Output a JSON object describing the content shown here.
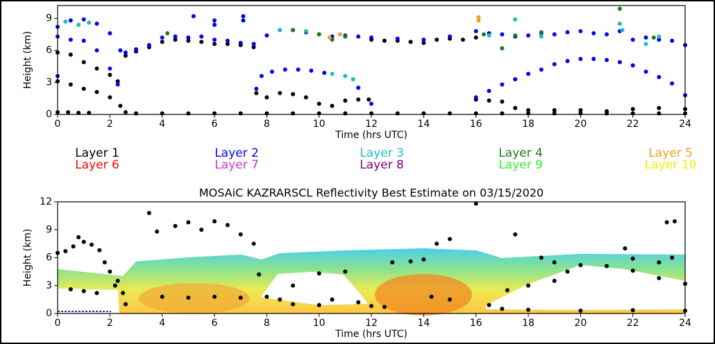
{
  "chart_data": [
    {
      "type": "scatter",
      "xlabel": "Time (hrs UTC)",
      "ylabel": "Height (km)",
      "xlim": [
        0,
        24
      ],
      "ylim": [
        0,
        10.2
      ],
      "xticks": [
        0,
        2,
        4,
        6,
        8,
        10,
        12,
        14,
        16,
        18,
        20,
        22,
        24
      ],
      "yticks": [
        0,
        3,
        6,
        9
      ],
      "series": [
        {
          "name": "Layer 1",
          "color": "#000000",
          "x": [
            0,
            0.4,
            0.8,
            1.2,
            0,
            0.5,
            1,
            1.5,
            2,
            2.4,
            2.6,
            0,
            0.5,
            1,
            1.5,
            2,
            2.3,
            3,
            4,
            5,
            6,
            7,
            8,
            9,
            10,
            11,
            12,
            13,
            14,
            15,
            16,
            17,
            18,
            19,
            20,
            21,
            22,
            23,
            24,
            2.6,
            3,
            3.5,
            4,
            4.5,
            5,
            5.5,
            6,
            6.5,
            7,
            7.5,
            7.6,
            8,
            8.5,
            9,
            9.5,
            10,
            10.5,
            11,
            11.5,
            11.9,
            12,
            12.5,
            13,
            13.5,
            14,
            14.5,
            15,
            15.5,
            16,
            16,
            16.5,
            17,
            17.5,
            18,
            19,
            20,
            21,
            22,
            23,
            24
          ],
          "values": [
            0.2,
            0.2,
            0.15,
            0.15,
            3.1,
            2.8,
            2.4,
            2.1,
            1.6,
            0.8,
            0.2,
            5.8,
            5.6,
            4.9,
            4.3,
            3.7,
            3.1,
            0.1,
            0.1,
            0.1,
            0.1,
            0.1,
            0.1,
            0.1,
            0.1,
            0.1,
            0.1,
            0.1,
            0.1,
            0.1,
            0.1,
            0.1,
            0.1,
            0.1,
            0.1,
            0.1,
            0.1,
            0.1,
            0.1,
            5.5,
            5.9,
            6.3,
            6.8,
            7,
            6.9,
            6.8,
            6.6,
            6.6,
            6.5,
            6.3,
            2,
            1.6,
            2,
            1.9,
            1.6,
            1,
            0.8,
            1.3,
            1.4,
            1.4,
            7,
            6.9,
            6.9,
            6.8,
            6.7,
            7,
            7.1,
            7,
            7.2,
            1.4,
            1.3,
            1.2,
            0.6,
            0.4,
            0.4,
            0.4,
            0.3,
            0.5,
            0.6,
            0.5
          ]
        },
        {
          "name": "Layer 2",
          "color": "#0000ee",
          "x": [
            0,
            0.5,
            1,
            1.5,
            2,
            2.4,
            2.6,
            0,
            0.5,
            1,
            1.5,
            2,
            2.3,
            0,
            3,
            3.5,
            4,
            4.5,
            5,
            5.5,
            6,
            6.5,
            7,
            7.5,
            8,
            8.5,
            9,
            9.5,
            10,
            10.5,
            11,
            11.5,
            12,
            13,
            14,
            15,
            16,
            16.5,
            17,
            17.5,
            18,
            18.5,
            19,
            19.5,
            20,
            20.5,
            21,
            21.5,
            22,
            22.5,
            23,
            23.5,
            24,
            7.6,
            7.8,
            8.2,
            8.7,
            9.2,
            9.7,
            10.2,
            11.5,
            12,
            16,
            16.5,
            17,
            17.5,
            18,
            18.5,
            19,
            19.5,
            20,
            20.5,
            21,
            21.5,
            22,
            22.5,
            23,
            23.5,
            24,
            5.2,
            6,
            6,
            7.1,
            7.1
          ],
          "values": [
            8.2,
            8.8,
            8.9,
            8.5,
            7.6,
            6,
            5.8,
            7.3,
            7,
            6.9,
            6,
            4.3,
            2.8,
            3.6,
            6.1,
            6.5,
            7.2,
            7.3,
            7.2,
            7.3,
            7,
            6.9,
            6.7,
            6.6,
            7.4,
            7.9,
            7.9,
            7.7,
            7.5,
            7.3,
            7.4,
            7.3,
            7.2,
            7.1,
            7,
            7.3,
            7.8,
            7.6,
            7.5,
            7.3,
            7.4,
            7.6,
            7.5,
            7.7,
            7.8,
            7.6,
            7.5,
            7.8,
            7,
            7.2,
            7,
            6.9,
            6.5,
            2.4,
            3.6,
            4,
            4.2,
            4.2,
            4.1,
            3.9,
            2.5,
            1,
            1.6,
            2.2,
            2.8,
            3.3,
            3.8,
            4.2,
            4.7,
            5,
            5.2,
            5.2,
            5.1,
            4.9,
            4.6,
            4,
            3.5,
            2.9,
            1.8,
            9.2,
            8.8,
            8.4,
            9.2,
            8.8
          ]
        },
        {
          "name": "Layer 3",
          "color": "#1bbcc0",
          "x": [
            0.3,
            0.8,
            1.2,
            8.5,
            9.5,
            10.5,
            11,
            11.3,
            16.5,
            17.5,
            18.5,
            21.5,
            21.6,
            22.5,
            23
          ],
          "values": [
            8.7,
            8.4,
            8.6,
            7.9,
            7.8,
            3.8,
            3.6,
            3.3,
            7.4,
            8.9,
            7.3,
            8.5,
            7.9,
            6.6,
            7.3
          ]
        },
        {
          "name": "Layer 4",
          "color": "#1a7a1a",
          "x": [
            4.2,
            9,
            10,
            10.5,
            11,
            16.3,
            17,
            17.5,
            18.5,
            21.5,
            22.8
          ],
          "values": [
            7.6,
            7.9,
            7.5,
            7,
            7.3,
            7.5,
            6.2,
            7.4,
            7.7,
            9.9,
            7.2
          ]
        },
        {
          "name": "Layer 5",
          "color": "#f0a020",
          "x": [
            16.1,
            16.1,
            10.4,
            10.8
          ],
          "values": [
            9.1,
            8.8,
            7.2,
            7.5
          ]
        },
        {
          "name": "Layer 6",
          "color": "#ff0000",
          "x": [],
          "values": []
        },
        {
          "name": "Layer 7",
          "color": "#cc33cc",
          "x": [],
          "values": []
        },
        {
          "name": "Layer 8",
          "color": "#800080",
          "x": [],
          "values": []
        },
        {
          "name": "Layer 9",
          "color": "#33ee33",
          "x": [],
          "values": []
        },
        {
          "name": "Layer 10",
          "color": "#eeee00",
          "x": [],
          "values": []
        }
      ]
    },
    {
      "type": "scatter",
      "title": "MOSAiC KAZRARSCL Reflectivity Best Estimate on 03/15/2020",
      "xlabel": "Time (hrs UTC)",
      "ylabel": "Height (km)",
      "xlim": [
        0,
        24
      ],
      "ylim": [
        0,
        12
      ],
      "xticks": [
        0,
        2,
        4,
        6,
        8,
        10,
        12,
        14,
        16,
        18,
        20,
        22,
        24
      ],
      "yticks": [
        0,
        3,
        6,
        9,
        12
      ],
      "series": [
        {
          "color": "#000000",
          "x": [
            0,
            0.3,
            0.6,
            0.8,
            1,
            1.3,
            1.6,
            1.8,
            2,
            2.3,
            2.5,
            0.5,
            1,
            1.5,
            2.2,
            2.6,
            3.5,
            3.8,
            4.5,
            5,
            5.5,
            6,
            6.5,
            7,
            7.5,
            4,
            5,
            6,
            7,
            7.7,
            8,
            8.5,
            9,
            10,
            10.5,
            11,
            11.5,
            12,
            10,
            9,
            12.5,
            12.8,
            13.5,
            14,
            14.5,
            15,
            15,
            14.3,
            16,
            16.5,
            17,
            18,
            17.2,
            18,
            19,
            19.5,
            20,
            21,
            22,
            23,
            24,
            17.5,
            18.5,
            19,
            21.7,
            22,
            23,
            23.5,
            23.3,
            23.6,
            20,
            22,
            24
          ],
          "values": [
            6.5,
            6.7,
            7.2,
            8.2,
            7.7,
            7.4,
            6.8,
            5.5,
            4.5,
            3.5,
            2.2,
            2.6,
            2.4,
            2.2,
            3,
            1,
            10.8,
            8.8,
            9.4,
            9.8,
            9,
            9.9,
            9.5,
            8.5,
            7.5,
            1.8,
            1.7,
            1.8,
            1.7,
            4.2,
            1.8,
            1.5,
            1,
            0.9,
            1.5,
            4.5,
            1.2,
            0.8,
            4.3,
            3,
            0.7,
            5.5,
            5.6,
            5.8,
            7.5,
            8,
            1.5,
            1.8,
            11.8,
            0.9,
            0.5,
            0.4,
            2.5,
            3,
            3.5,
            4.5,
            5.2,
            5.1,
            4.6,
            3.8,
            3.2,
            8.5,
            6,
            5.5,
            7,
            5.9,
            5.5,
            6,
            9.8,
            9.9,
            0.3,
            0.35,
            0.3
          ]
        }
      ]
    }
  ]
}
